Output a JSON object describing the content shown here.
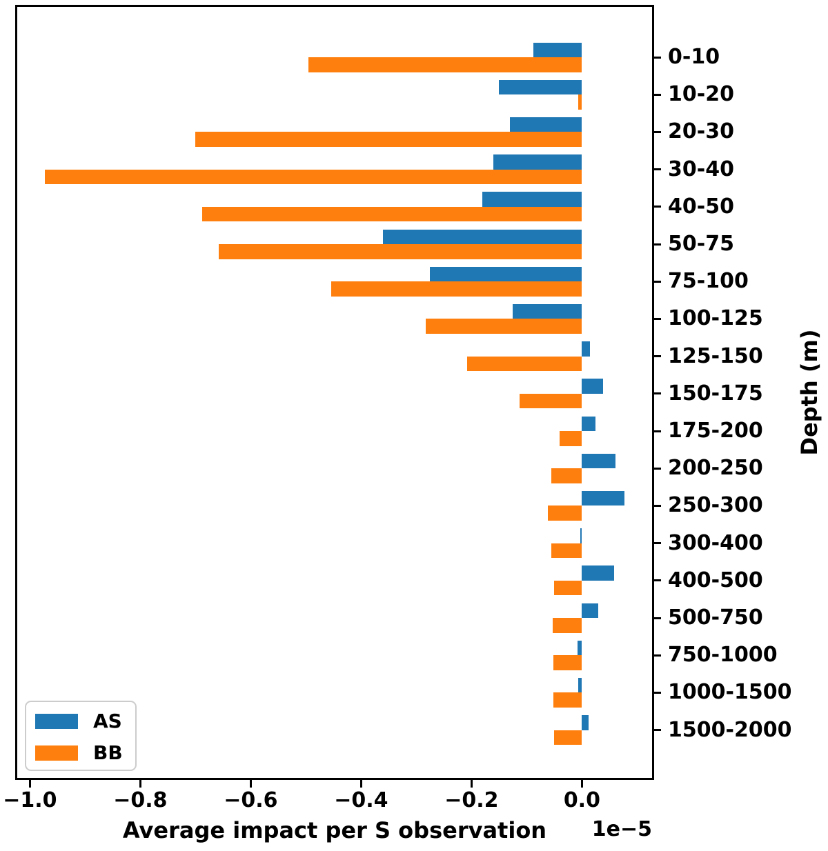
{
  "chart_data": {
    "type": "bar",
    "orientation": "horizontal",
    "title": "",
    "xlabel": "Average impact per S observation",
    "ylabel": "Depth (m)",
    "offset_text": "1e−5",
    "value_scale": "1e-5",
    "grid": false,
    "xlim": [
      -1.023,
      0.127
    ],
    "xticks": [
      -1.0,
      -0.8,
      -0.6,
      -0.4,
      -0.2,
      0.0
    ],
    "xtick_labels": [
      "−1.0",
      "−0.8",
      "−0.6",
      "−0.4",
      "−0.2",
      "0.0"
    ],
    "categories": [
      "0-10",
      "10-20",
      "20-30",
      "30-40",
      "40-50",
      "50-75",
      "75-100",
      "100-125",
      "125-150",
      "150-175",
      "175-200",
      "200-250",
      "250-300",
      "300-400",
      "400-500",
      "500-750",
      "750-1000",
      "1000-1500",
      "1500-2000"
    ],
    "series": [
      {
        "name": "AS",
        "color": "#1f77b4",
        "values": [
          -0.088,
          -0.151,
          -0.13,
          -0.16,
          -0.18,
          -0.36,
          -0.275,
          -0.126,
          0.014,
          0.038,
          0.024,
          0.061,
          0.077,
          -0.003,
          0.058,
          0.03,
          -0.008,
          -0.007,
          0.012
        ]
      },
      {
        "name": "BB",
        "color": "#ff7f0e",
        "values": [
          -0.495,
          -0.007,
          -0.7,
          -0.973,
          -0.688,
          -0.658,
          -0.454,
          -0.283,
          -0.208,
          -0.113,
          -0.04,
          -0.055,
          -0.062,
          -0.056,
          -0.051,
          -0.053,
          -0.052,
          -0.052,
          -0.051
        ]
      }
    ],
    "legend": {
      "position": "lower left",
      "entries": [
        "AS",
        "BB"
      ]
    },
    "colors": {
      "spine": "#000000",
      "text": "#000000",
      "legend_border": "#cccccc",
      "background": "#ffffff"
    }
  }
}
